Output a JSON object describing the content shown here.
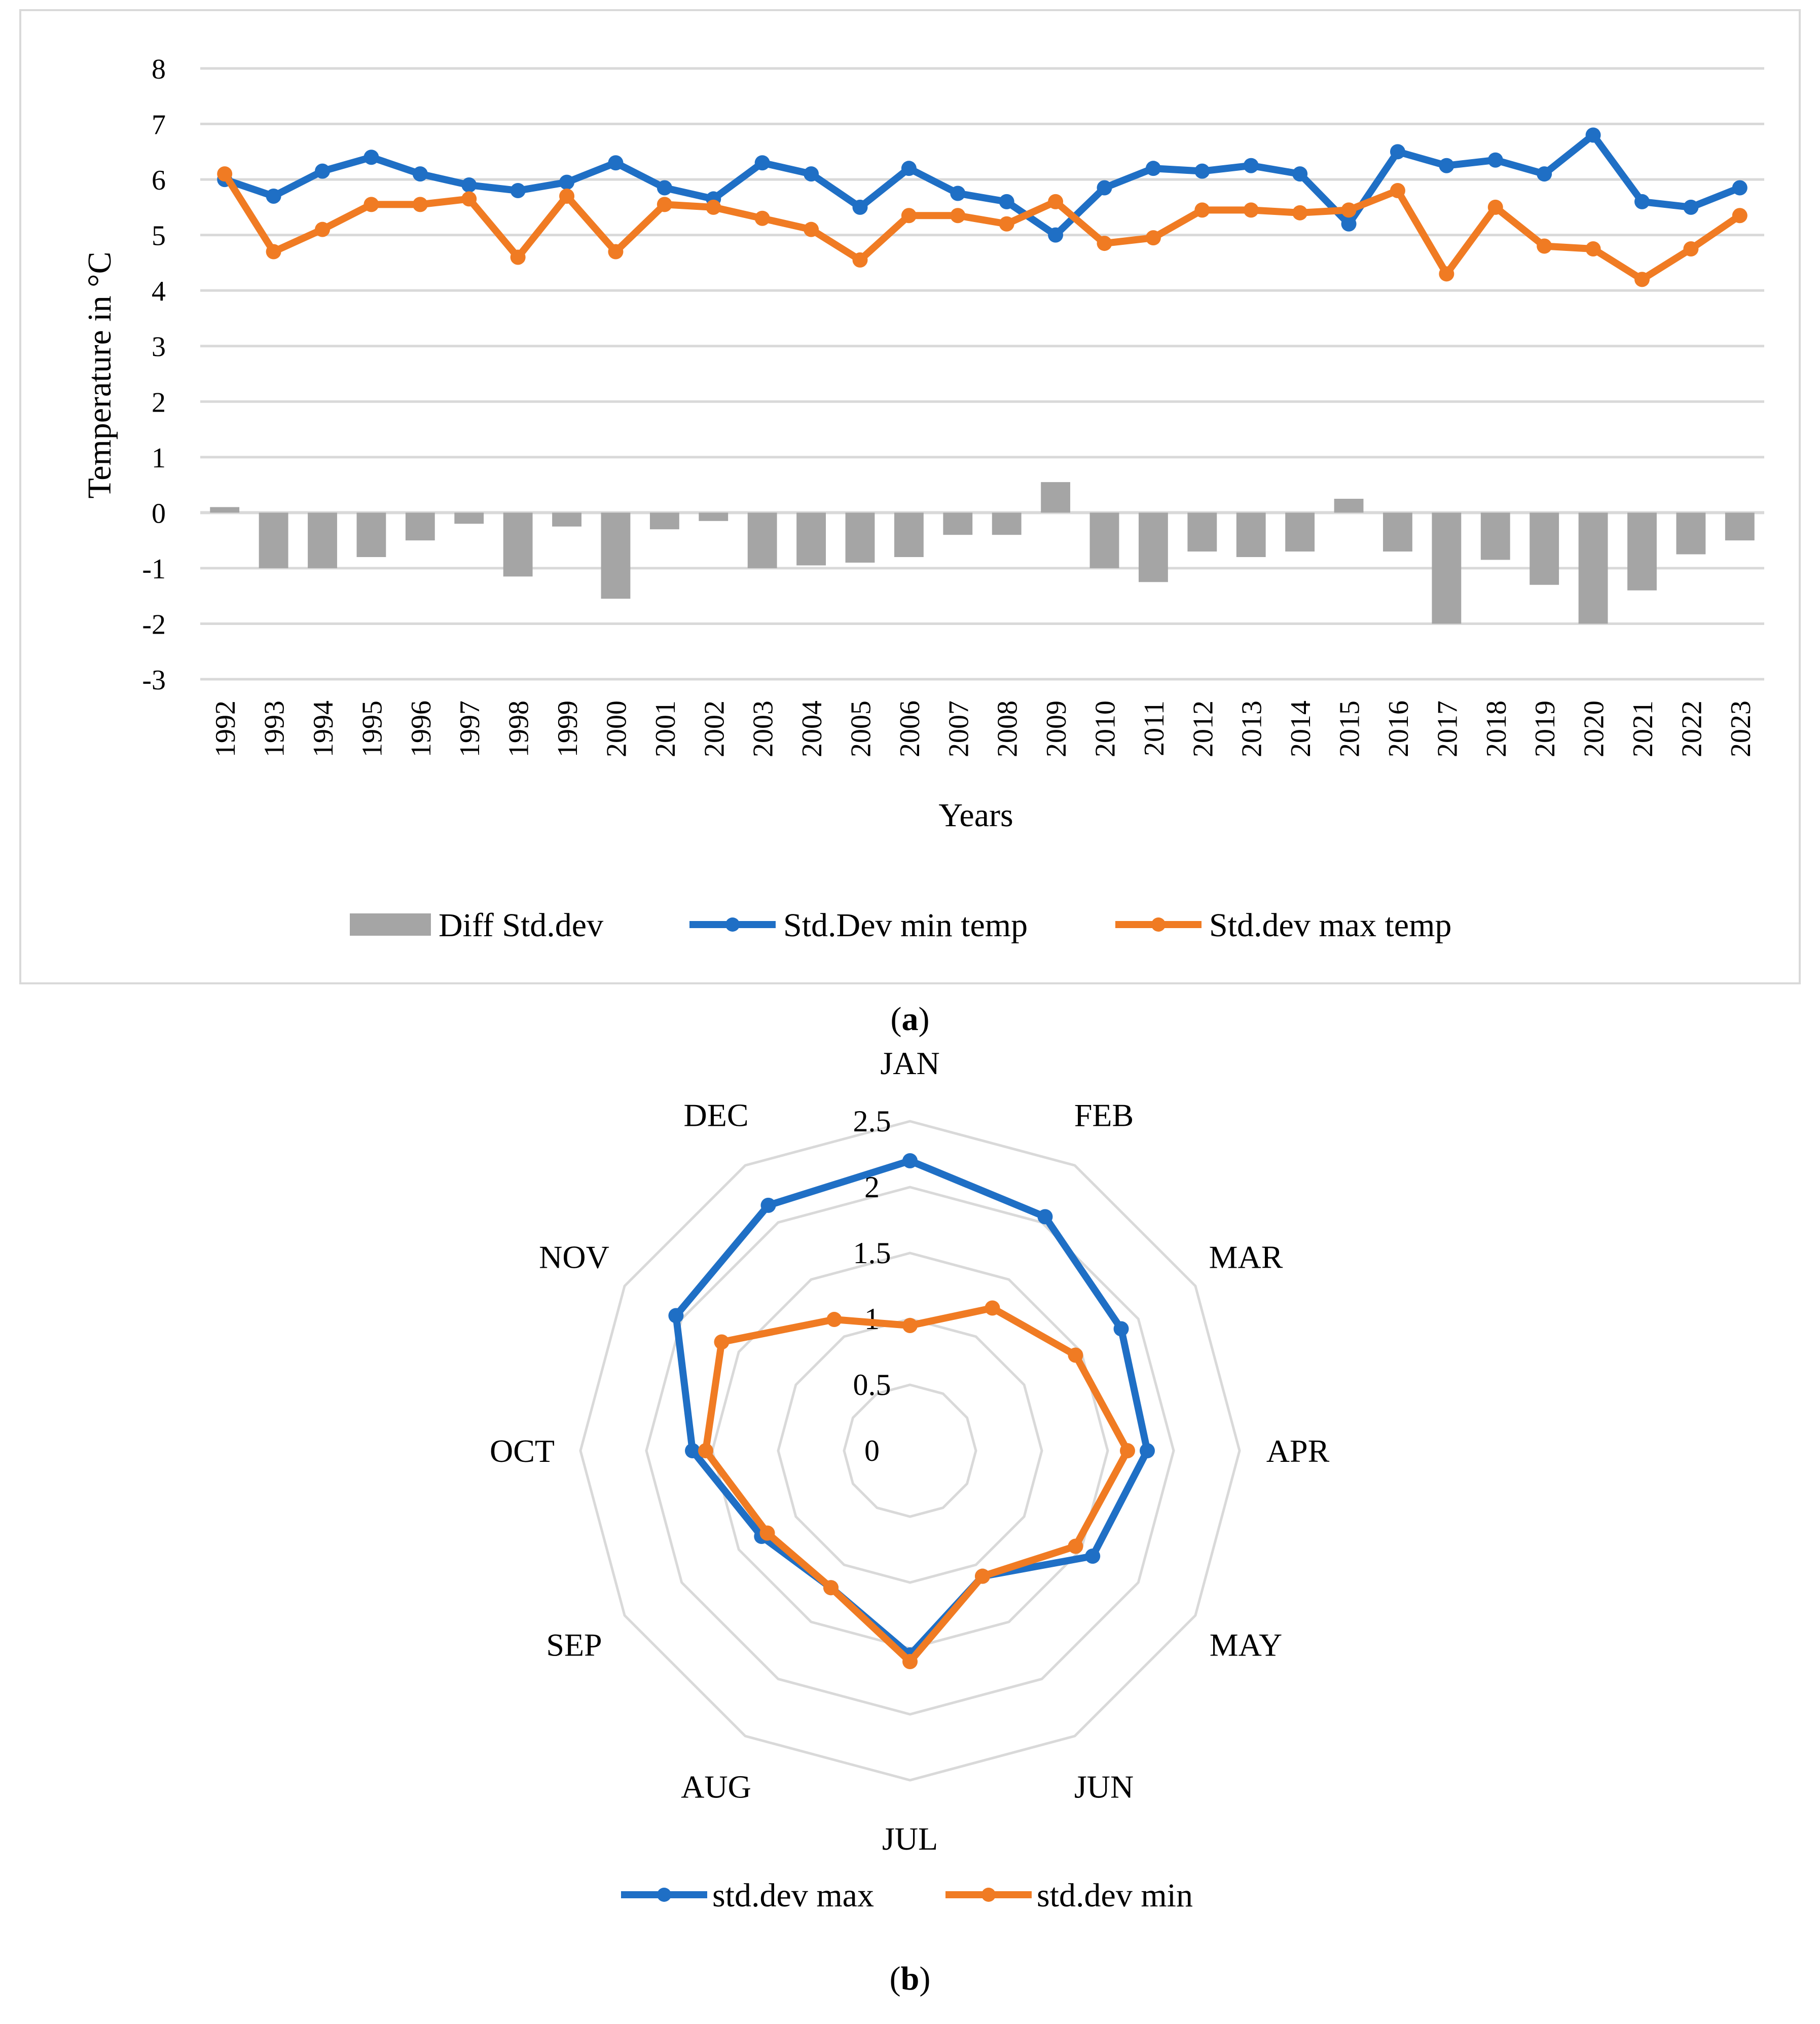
{
  "chart_data": [
    {
      "type": "bar+line",
      "caption_letter": "a",
      "xlabel": "Years",
      "ylabel": "Temperature in °C",
      "ylim": [
        -3,
        8
      ],
      "yticks": [
        -3,
        -2,
        -1,
        0,
        1,
        2,
        3,
        4,
        5,
        6,
        7,
        8
      ],
      "grid": true,
      "legend_position": "bottom",
      "categories": [
        "1992",
        "1993",
        "1994",
        "1995",
        "1996",
        "1997",
        "1998",
        "1999",
        "2000",
        "2001",
        "2002",
        "2003",
        "2004",
        "2005",
        "2006",
        "2007",
        "2008",
        "2009",
        "2010",
        "2011",
        "2012",
        "2013",
        "2014",
        "2015",
        "2016",
        "2017",
        "2018",
        "2019",
        "2020",
        "2021",
        "2022",
        "2023"
      ],
      "series": [
        {
          "name": "Diff Std.dev",
          "kind": "bar",
          "color": "#a5a5a5",
          "values": [
            0.1,
            -1.0,
            -1.0,
            -0.8,
            -0.5,
            -0.2,
            -1.15,
            -0.25,
            -1.55,
            -0.3,
            -0.15,
            -1.0,
            -0.95,
            -0.9,
            -0.8,
            -0.4,
            -0.4,
            0.55,
            -1.0,
            -1.25,
            -0.7,
            -0.8,
            -0.7,
            0.25,
            -0.7,
            -2.0,
            -0.85,
            -1.3,
            -2.0,
            -1.4,
            -0.75,
            -0.5
          ]
        },
        {
          "name": "Std.Dev min temp",
          "kind": "line",
          "color": "#1f6fc5",
          "values": [
            6.0,
            5.7,
            6.15,
            6.4,
            6.1,
            5.9,
            5.8,
            5.95,
            6.3,
            5.85,
            5.65,
            6.3,
            6.1,
            5.5,
            6.2,
            5.75,
            5.6,
            5.0,
            5.85,
            6.2,
            6.15,
            6.25,
            6.1,
            5.2,
            6.5,
            6.25,
            6.35,
            6.1,
            6.8,
            5.6,
            5.5,
            5.85
          ]
        },
        {
          "name": "Std.dev max temp",
          "kind": "line",
          "color": "#f07b23",
          "values": [
            6.1,
            4.7,
            5.1,
            5.55,
            5.55,
            5.65,
            4.6,
            5.7,
            4.7,
            5.55,
            5.5,
            5.3,
            5.1,
            4.55,
            5.35,
            5.35,
            5.2,
            5.6,
            4.85,
            4.95,
            5.45,
            5.45,
            5.4,
            5.45,
            5.8,
            4.3,
            5.5,
            4.8,
            4.75,
            4.2,
            4.75,
            5.35
          ]
        }
      ]
    },
    {
      "type": "radar",
      "caption_letter": "b",
      "categories": [
        "JAN",
        "FEB",
        "MAR",
        "APR",
        "MAY",
        "JUN",
        "JUL",
        "AUG",
        "SEP",
        "OCT",
        "NOV",
        "DEC"
      ],
      "rlim": [
        0,
        2.5
      ],
      "rticks": [
        "0",
        "0.5",
        "1",
        "1.5",
        "2",
        "2.5"
      ],
      "legend_position": "bottom",
      "series": [
        {
          "name": "std.dev max",
          "color": "#1f6fc5",
          "values": [
            2.2,
            2.05,
            1.85,
            1.8,
            1.6,
            1.1,
            1.55,
            1.2,
            1.3,
            1.65,
            2.05,
            2.15
          ]
        },
        {
          "name": "std.dev min",
          "color": "#f07b23",
          "values": [
            0.95,
            1.25,
            1.45,
            1.65,
            1.45,
            1.1,
            1.6,
            1.2,
            1.25,
            1.55,
            1.65,
            1.15
          ]
        }
      ]
    }
  ]
}
